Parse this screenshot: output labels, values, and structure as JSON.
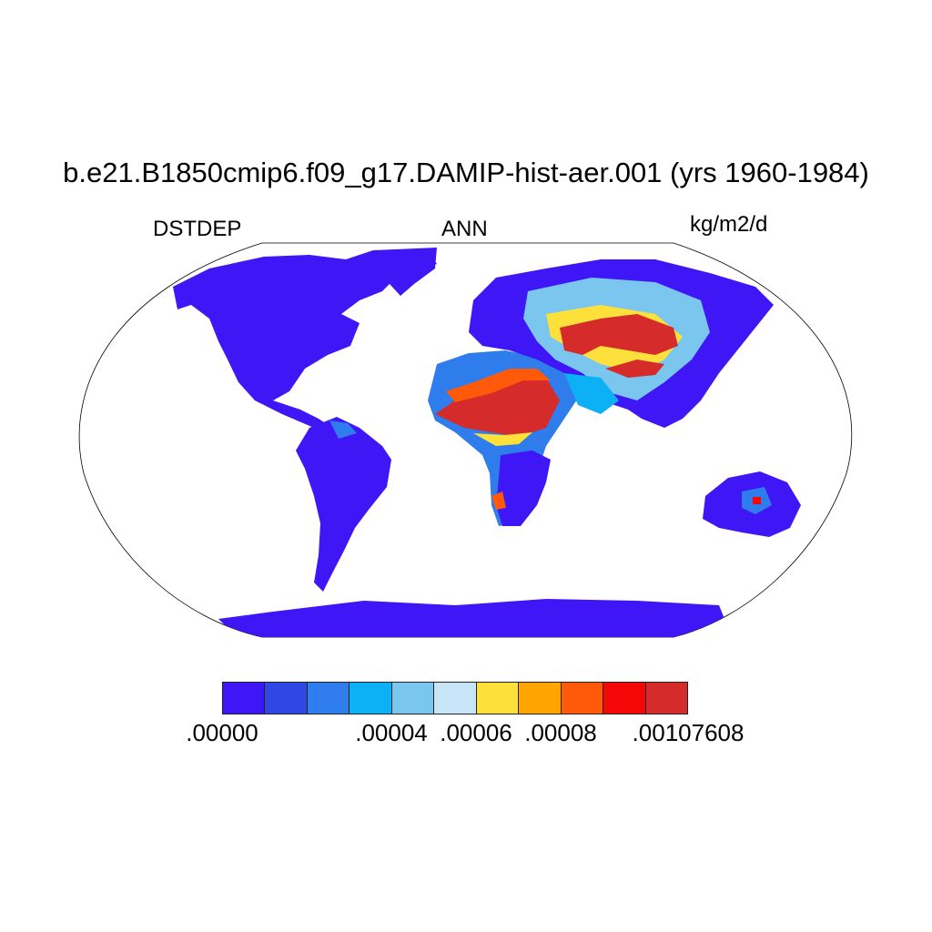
{
  "title": "b.e21.B1850cmip6.f09_g17.DAMIP-hist-aer.001 (yrs 1960-1984)",
  "variable": "DSTDEP",
  "season": "ANN",
  "units": "kg/m2/d",
  "projection": "Robinson",
  "colorbar": {
    "colors": [
      "#3f16f5",
      "#2f48e5",
      "#2f7ded",
      "#0bb0f5",
      "#7ac6ef",
      "#c7e5f7",
      "#fde13a",
      "#ffa500",
      "#ff5a0a",
      "#f50707",
      "#d52b2b"
    ],
    "labels": [
      ".00000",
      ".00004",
      ".00006",
      ".00008",
      ".00107608"
    ]
  }
}
